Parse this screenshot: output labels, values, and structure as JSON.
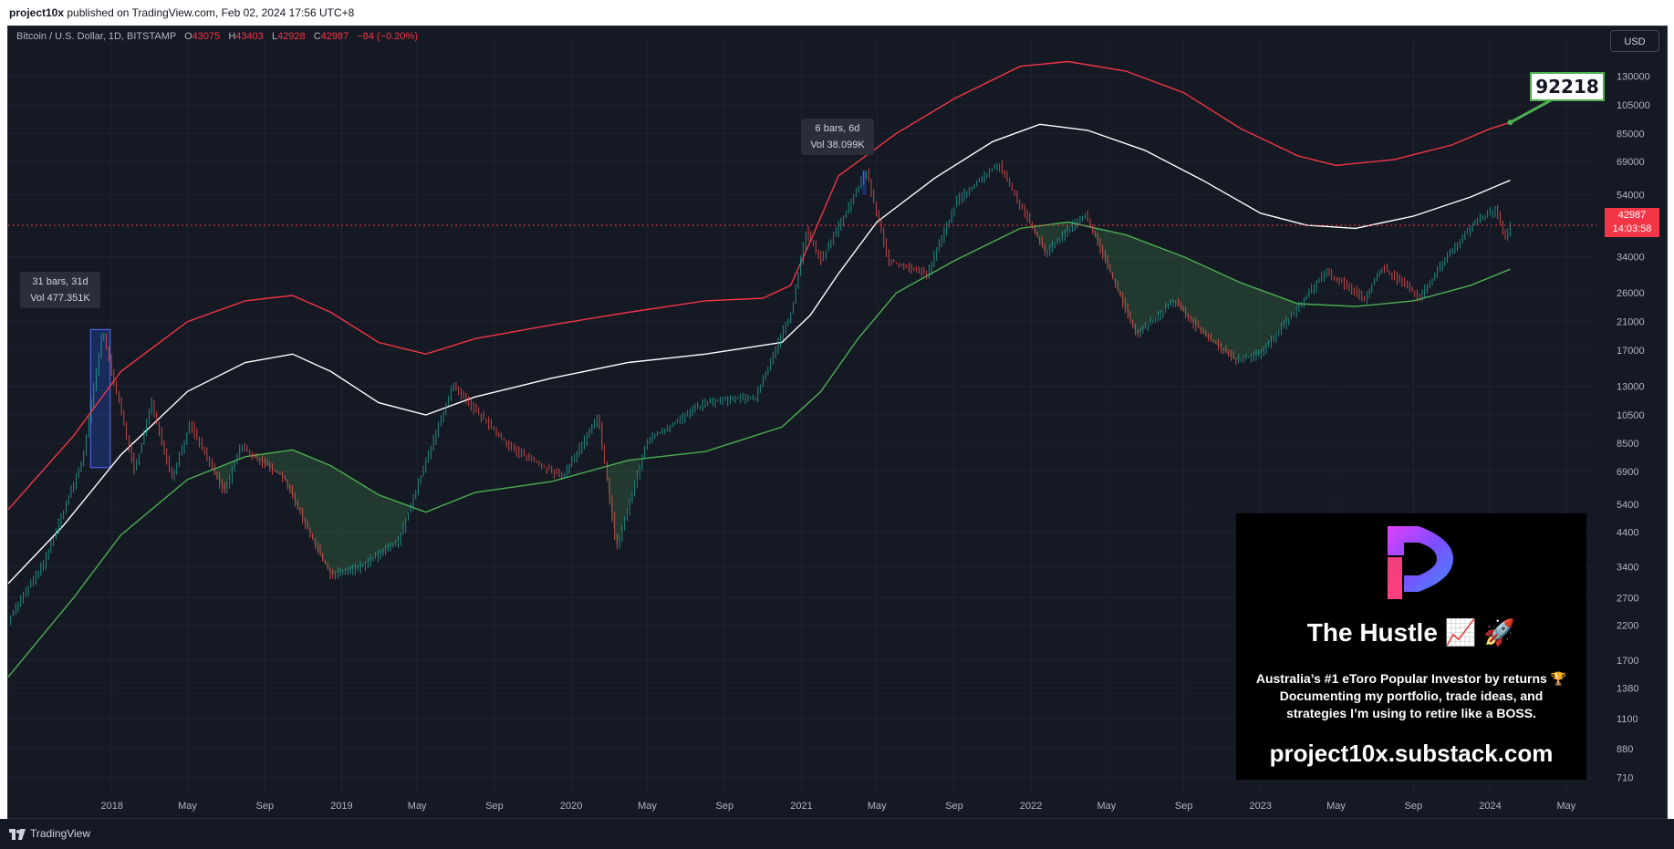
{
  "header": {
    "publisher": "project10x",
    "published_text": "published on TradingView.com, Feb 02, 2024 17:56 UTC+8"
  },
  "legend": {
    "symbol": "Bitcoin / U.S. Dollar, 1D, BITSTAMP",
    "open_label": "O",
    "open": "43075",
    "high_label": "H",
    "high": "43403",
    "low_label": "L",
    "low": "42928",
    "close_label": "C",
    "close": "42987",
    "change": "−84 (−0.20%)"
  },
  "currency_button": "USD",
  "price_tag": {
    "price": "42987",
    "countdown": "14:03:58"
  },
  "callout_value": "92218",
  "tooltips": [
    {
      "line1": "31 bars, 31d",
      "line2": "Vol 477.351K"
    },
    {
      "line1": "6 bars, 6d",
      "line2": "Vol 38.099K"
    }
  ],
  "promo": {
    "title": "The Hustle 📈 🚀",
    "desc_line1": "Australia’s #1 eToro Popular Investor by returns 🏆",
    "desc_line2": "Documenting my portfolio, trade ideas, and",
    "desc_line3": "strategies I’m using to retire like a BOSS.",
    "url": "project10x.substack.com"
  },
  "footer": {
    "brand": "TradingView"
  },
  "colors": {
    "background": "#151924",
    "upper_band": "#f23645",
    "middle_line": "#ffffff",
    "lower_band": "#4caf50",
    "up_candle": "#26a69a",
    "down_candle": "#ef5350"
  },
  "chart_data": {
    "type": "line",
    "scale": "log",
    "ylim": [
      640,
      170000
    ],
    "xlim": [
      "2017-07-20",
      "2024-06-18"
    ],
    "x_ticks": [
      "2018",
      "May",
      "Sep",
      "2019",
      "May",
      "Sep",
      "2020",
      "May",
      "Sep",
      "2021",
      "May",
      "Sep",
      "2022",
      "May",
      "Sep",
      "2023",
      "May",
      "Sep",
      "2024",
      "May"
    ],
    "x_tick_dates": [
      "2018-01-01",
      "2018-05-01",
      "2018-09-01",
      "2019-01-01",
      "2019-05-01",
      "2019-09-01",
      "2020-01-01",
      "2020-05-01",
      "2020-09-01",
      "2021-01-01",
      "2021-05-01",
      "2021-09-01",
      "2022-01-01",
      "2022-05-01",
      "2022-09-01",
      "2023-01-01",
      "2023-05-01",
      "2023-09-01",
      "2024-01-01",
      "2024-05-01"
    ],
    "y_ticks": [
      130000,
      105000,
      85000,
      69000,
      54000,
      42987,
      34000,
      26000,
      21000,
      17000,
      13000,
      10500,
      8500,
      6900,
      5400,
      4400,
      3400,
      2700,
      2200,
      1700,
      1380,
      1100,
      880,
      710
    ],
    "current_price": 42987,
    "series": [
      {
        "name": "",
        "role": "upper band",
        "color": "#f23645",
        "points": [
          [
            "2017-07-20",
            5200
          ],
          [
            "2017-11-01",
            9000
          ],
          [
            "2018-01-15",
            14500
          ],
          [
            "2018-05-01",
            21000
          ],
          [
            "2018-08-01",
            24500
          ],
          [
            "2018-10-15",
            25500
          ],
          [
            "2018-12-15",
            22500
          ],
          [
            "2019-03-01",
            18000
          ],
          [
            "2019-05-15",
            16500
          ],
          [
            "2019-08-01",
            18500
          ],
          [
            "2019-12-01",
            20500
          ],
          [
            "2020-04-01",
            22500
          ],
          [
            "2020-08-01",
            24500
          ],
          [
            "2020-11-01",
            25000
          ],
          [
            "2020-12-15",
            27500
          ],
          [
            "2021-01-15",
            38000
          ],
          [
            "2021-03-01",
            62000
          ],
          [
            "2021-06-01",
            85000
          ],
          [
            "2021-09-01",
            110000
          ],
          [
            "2021-12-15",
            140000
          ],
          [
            "2022-03-01",
            145000
          ],
          [
            "2022-06-01",
            135000
          ],
          [
            "2022-09-01",
            115000
          ],
          [
            "2022-12-01",
            88000
          ],
          [
            "2023-03-01",
            72000
          ],
          [
            "2023-05-01",
            67000
          ],
          [
            "2023-08-01",
            70000
          ],
          [
            "2023-11-01",
            78000
          ],
          [
            "2024-01-01",
            88000
          ],
          [
            "2024-02-02",
            92218
          ]
        ]
      },
      {
        "name": "",
        "role": "middle line",
        "color": "#ffffff",
        "points": [
          [
            "2017-07-20",
            3000
          ],
          [
            "2017-10-15",
            4600
          ],
          [
            "2018-01-15",
            7800
          ],
          [
            "2018-05-01",
            12500
          ],
          [
            "2018-08-01",
            15500
          ],
          [
            "2018-10-15",
            16500
          ],
          [
            "2018-12-15",
            14500
          ],
          [
            "2019-03-01",
            11500
          ],
          [
            "2019-05-15",
            10500
          ],
          [
            "2019-08-01",
            12000
          ],
          [
            "2019-12-01",
            13800
          ],
          [
            "2020-04-01",
            15500
          ],
          [
            "2020-08-01",
            16500
          ],
          [
            "2020-12-01",
            18000
          ],
          [
            "2021-01-15",
            22000
          ],
          [
            "2021-03-01",
            30000
          ],
          [
            "2021-05-01",
            44000
          ],
          [
            "2021-08-01",
            61000
          ],
          [
            "2021-11-01",
            80000
          ],
          [
            "2022-01-15",
            91000
          ],
          [
            "2022-04-01",
            87000
          ],
          [
            "2022-07-01",
            75000
          ],
          [
            "2022-10-01",
            60000
          ],
          [
            "2023-01-01",
            47000
          ],
          [
            "2023-03-15",
            43000
          ],
          [
            "2023-06-01",
            42000
          ],
          [
            "2023-09-01",
            46000
          ],
          [
            "2023-12-01",
            53000
          ],
          [
            "2024-02-02",
            60000
          ]
        ]
      },
      {
        "name": "",
        "role": "lower band",
        "color": "#4caf50",
        "points": [
          [
            "2017-07-20",
            1500
          ],
          [
            "2017-11-01",
            2700
          ],
          [
            "2018-01-15",
            4300
          ],
          [
            "2018-05-01",
            6500
          ],
          [
            "2018-08-01",
            7700
          ],
          [
            "2018-10-15",
            8100
          ],
          [
            "2018-12-15",
            7200
          ],
          [
            "2019-03-01",
            5800
          ],
          [
            "2019-05-15",
            5100
          ],
          [
            "2019-08-01",
            5900
          ],
          [
            "2019-12-01",
            6400
          ],
          [
            "2020-04-01",
            7500
          ],
          [
            "2020-08-01",
            8000
          ],
          [
            "2020-12-01",
            9600
          ],
          [
            "2021-02-01",
            12500
          ],
          [
            "2021-04-01",
            18500
          ],
          [
            "2021-06-01",
            26000
          ],
          [
            "2021-09-01",
            33000
          ],
          [
            "2021-12-15",
            42000
          ],
          [
            "2022-03-01",
            44000
          ],
          [
            "2022-06-01",
            40000
          ],
          [
            "2022-09-01",
            34000
          ],
          [
            "2022-12-01",
            28000
          ],
          [
            "2023-03-01",
            24000
          ],
          [
            "2023-06-01",
            23500
          ],
          [
            "2023-09-01",
            24500
          ],
          [
            "2023-12-01",
            27500
          ],
          [
            "2024-02-02",
            31000
          ]
        ]
      },
      {
        "name": "",
        "role": "BTC/USD close",
        "color": "#26a69a",
        "points": [
          [
            "2017-07-20",
            2300
          ],
          [
            "2017-09-15",
            3500
          ],
          [
            "2017-11-15",
            7500
          ],
          [
            "2017-12-17",
            19500
          ],
          [
            "2018-02-06",
            6900
          ],
          [
            "2018-03-05",
            11500
          ],
          [
            "2018-04-06",
            6600
          ],
          [
            "2018-05-05",
            9800
          ],
          [
            "2018-06-29",
            5900
          ],
          [
            "2018-07-24",
            8300
          ],
          [
            "2018-10-01",
            6600
          ],
          [
            "2018-11-25",
            3800
          ],
          [
            "2018-12-15",
            3200
          ],
          [
            "2019-02-01",
            3400
          ],
          [
            "2019-04-01",
            4100
          ],
          [
            "2019-06-26",
            13000
          ],
          [
            "2019-09-25",
            8300
          ],
          [
            "2019-12-17",
            6600
          ],
          [
            "2020-02-13",
            10300
          ],
          [
            "2020-03-13",
            3900
          ],
          [
            "2020-05-01",
            8700
          ],
          [
            "2020-08-01",
            11500
          ],
          [
            "2020-10-20",
            12000
          ],
          [
            "2020-12-17",
            23000
          ],
          [
            "2021-01-08",
            41000
          ],
          [
            "2021-02-01",
            33000
          ],
          [
            "2021-04-14",
            64000
          ],
          [
            "2021-05-19",
            33000
          ],
          [
            "2021-07-20",
            30000
          ],
          [
            "2021-09-06",
            52000
          ],
          [
            "2021-11-10",
            68000
          ],
          [
            "2022-01-24",
            35000
          ],
          [
            "2022-03-28",
            47000
          ],
          [
            "2022-06-18",
            19000
          ],
          [
            "2022-08-15",
            24500
          ],
          [
            "2022-10-01",
            19300
          ],
          [
            "2022-11-21",
            15800
          ],
          [
            "2023-01-01",
            16500
          ],
          [
            "2023-04-14",
            30500
          ],
          [
            "2023-06-15",
            25000
          ],
          [
            "2023-07-14",
            31500
          ],
          [
            "2023-09-11",
            25000
          ],
          [
            "2023-10-25",
            34500
          ],
          [
            "2023-12-08",
            44000
          ],
          [
            "2024-01-11",
            48500
          ],
          [
            "2024-01-23",
            39000
          ],
          [
            "2024-02-02",
            42987
          ]
        ]
      }
    ]
  }
}
